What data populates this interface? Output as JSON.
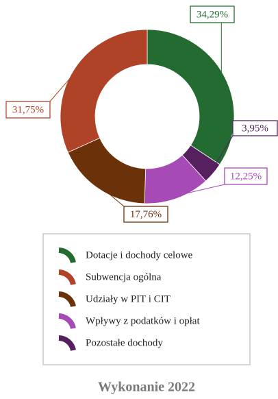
{
  "chart_data": {
    "type": "donut",
    "title": "Wykonanie 2022",
    "values": [
      34.29,
      3.95,
      12.25,
      17.76,
      31.75
    ],
    "value_labels": [
      "34,29%",
      "3,95%",
      "12,25%",
      "17,76%",
      "31,75%"
    ],
    "colors": [
      "#236b30",
      "#56205e",
      "#a64ab5",
      "#6b3108",
      "#b04327"
    ],
    "legend": [
      {
        "label": "Dotacje i dochody celowe",
        "color": "#236b30"
      },
      {
        "label": "Subwencja ogólna",
        "color": "#b04327"
      },
      {
        "label": "Udziały w PIT i CIT",
        "color": "#6b3108"
      },
      {
        "label": "Wpływy z podatków i opłat",
        "color": "#a64ab5"
      },
      {
        "label": "Pozostałe dochody",
        "color": "#56205e"
      }
    ]
  }
}
